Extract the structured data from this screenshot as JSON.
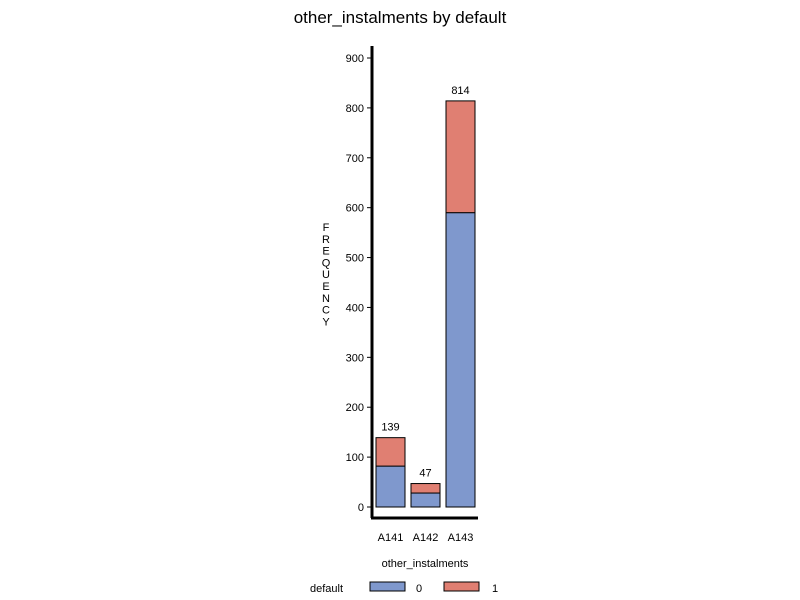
{
  "chart_data": {
    "type": "bar",
    "stacked": true,
    "title": "other_instalments  by  default",
    "xlabel": "other_instalments",
    "ylabel": "FREQUENCY",
    "categories": [
      "A141",
      "A142",
      "A143"
    ],
    "series": [
      {
        "name": "0",
        "values": [
          82,
          28,
          590
        ],
        "color": "#7f98cd"
      },
      {
        "name": "1",
        "values": [
          57,
          19,
          224
        ],
        "color": "#e07f72"
      }
    ],
    "totals": [
      139,
      47,
      814
    ],
    "ylim": [
      0,
      900
    ],
    "yticks": [
      0,
      100,
      200,
      300,
      400,
      500,
      600,
      700,
      800,
      900
    ],
    "grid": false,
    "legend": {
      "title": "default",
      "placement": "bottom"
    }
  }
}
